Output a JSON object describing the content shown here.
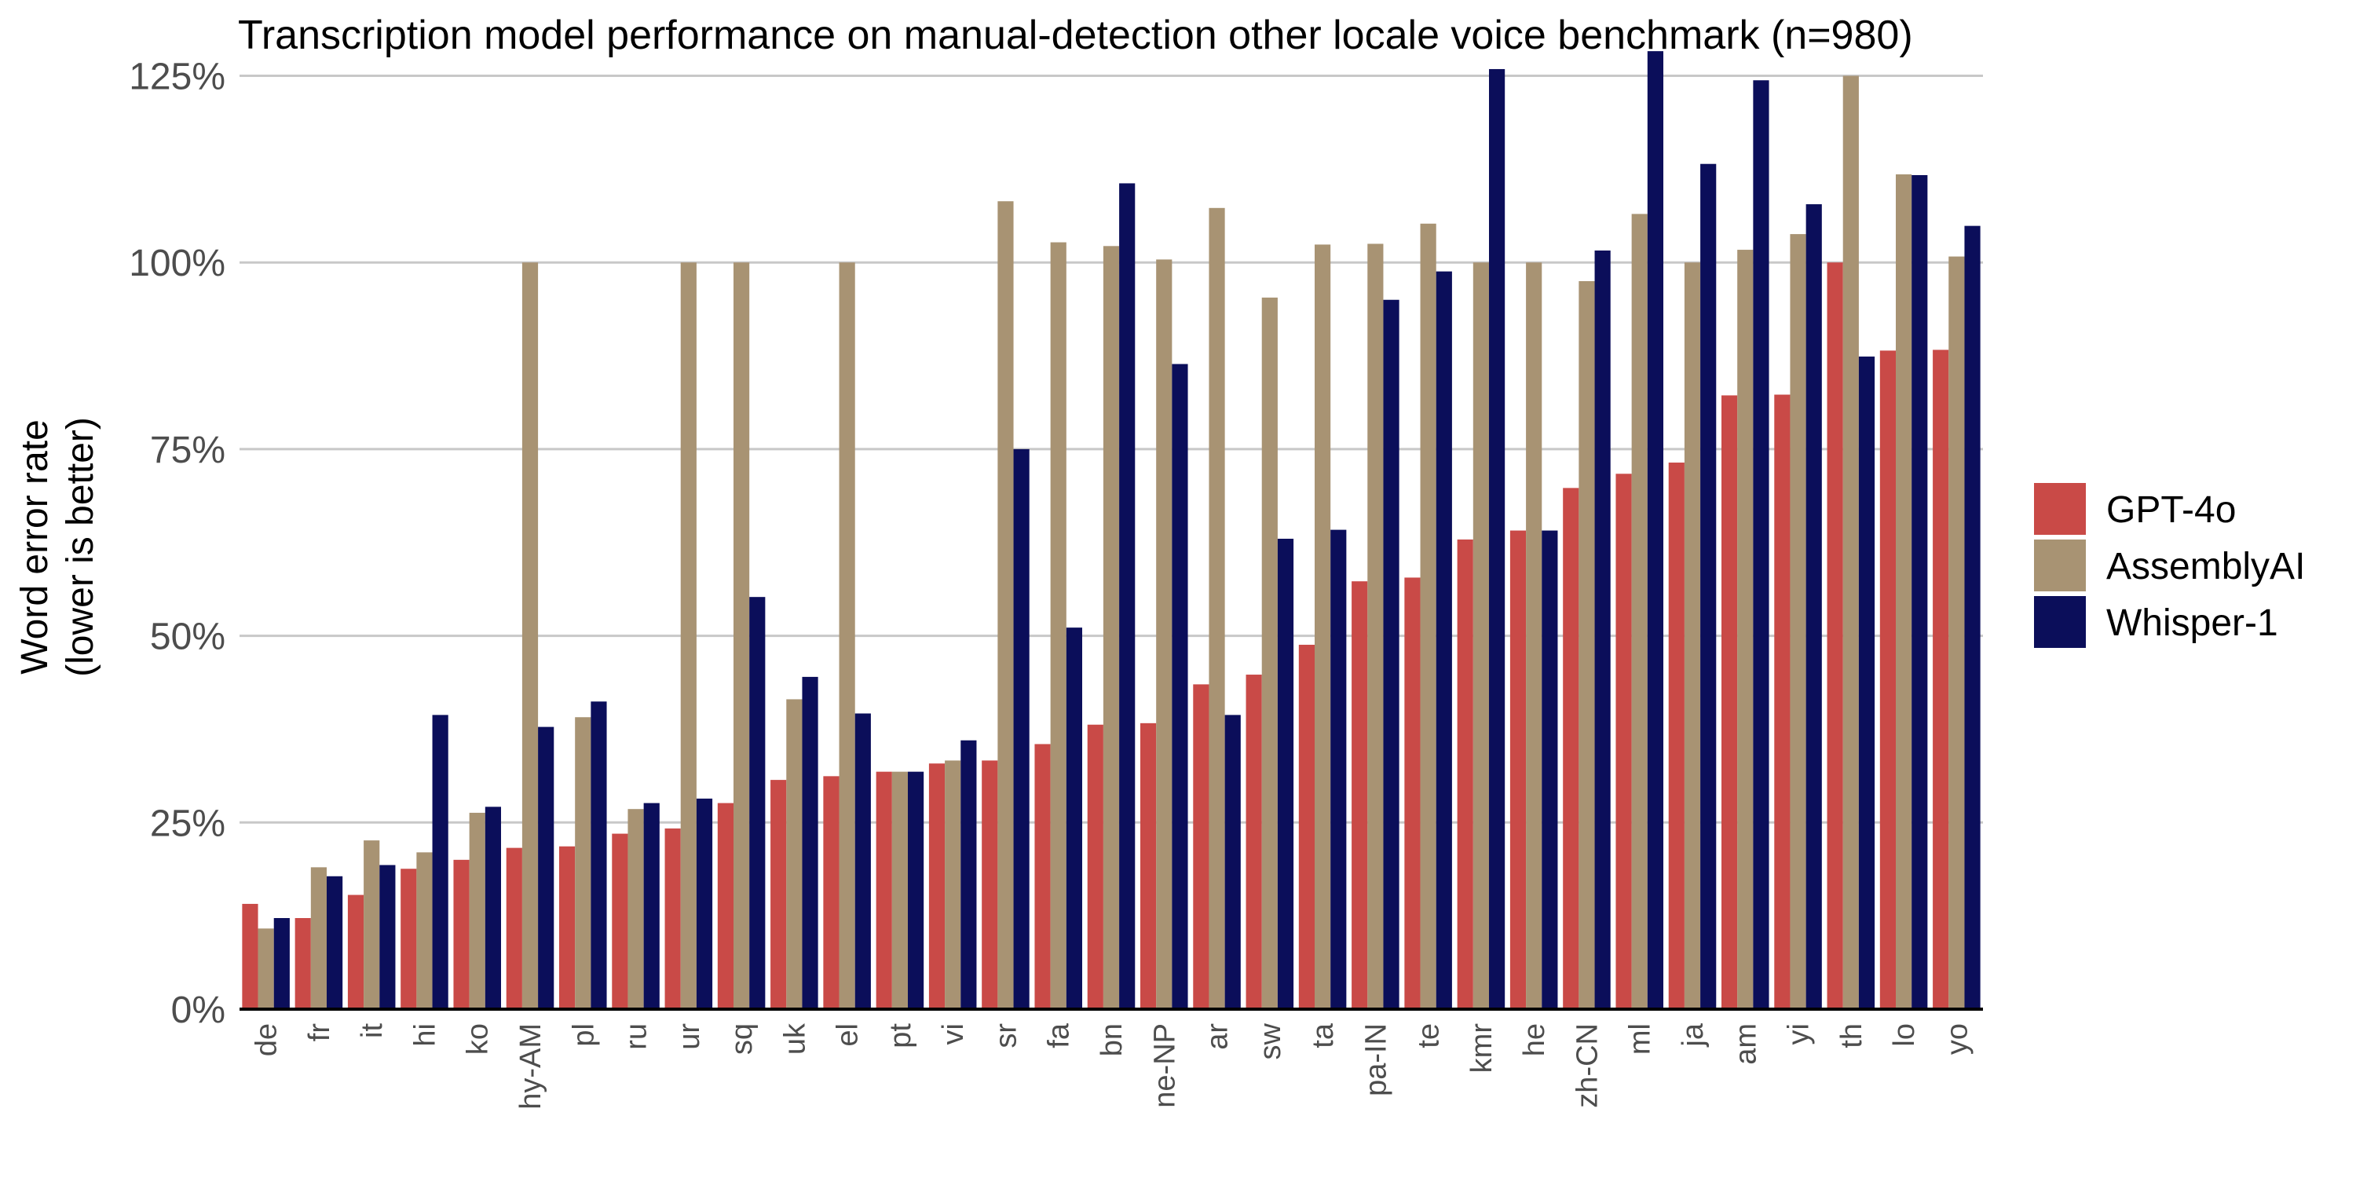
{
  "chart_data": {
    "type": "bar",
    "title": "Transcription model performance on manual-detection other locale voice benchmark (n=980)",
    "ylabel_lines": [
      "Word error rate",
      "(lower is better)"
    ],
    "xlabel": "",
    "ylim": [
      0,
      128
    ],
    "yticks": [
      0,
      25,
      50,
      75,
      100,
      125
    ],
    "ytick_labels": [
      "0%",
      "25%",
      "50%",
      "75%",
      "100%",
      "125%"
    ],
    "grid": true,
    "legend_position": "right",
    "categories": [
      "de",
      "fr",
      "it",
      "hi",
      "ko",
      "hy-AM",
      "pl",
      "ru",
      "ur",
      "sq",
      "uk",
      "el",
      "pt",
      "vi",
      "sr",
      "fa",
      "bn",
      "ne-NP",
      "ar",
      "sw",
      "ta",
      "pa-IN",
      "te",
      "kmr",
      "he",
      "zh-CN",
      "ml",
      "ja",
      "am",
      "yi",
      "th",
      "lo",
      "yo"
    ],
    "series": [
      {
        "name": "GPT-4o",
        "color": "#c94a47",
        "values": [
          14.1,
          12.2,
          15.3,
          18.8,
          20.0,
          21.6,
          21.8,
          23.5,
          24.2,
          27.6,
          30.7,
          31.2,
          31.8,
          32.9,
          33.3,
          35.5,
          38.1,
          38.3,
          43.5,
          44.8,
          48.8,
          57.3,
          57.8,
          62.9,
          64.1,
          69.8,
          71.7,
          73.2,
          82.2,
          82.3,
          100.0,
          88.2,
          88.3
        ]
      },
      {
        "name": "AssemblyAI",
        "color": "#a89373",
        "values": [
          10.8,
          19.0,
          22.6,
          21.0,
          26.3,
          100.0,
          39.1,
          26.8,
          100.0,
          100.0,
          41.5,
          100.0,
          31.8,
          33.3,
          108.2,
          102.7,
          102.2,
          100.4,
          107.3,
          95.3,
          102.4,
          102.5,
          105.2,
          100.0,
          100.0,
          97.5,
          106.5,
          100.0,
          101.7,
          103.8,
          125.0,
          111.8,
          100.8
        ]
      },
      {
        "name": "Whisper-1",
        "color": "#0b0e5a",
        "values": [
          12.2,
          17.8,
          19.3,
          39.4,
          27.1,
          37.8,
          41.2,
          27.6,
          28.2,
          55.2,
          44.5,
          39.6,
          31.8,
          36.0,
          75.0,
          51.1,
          110.6,
          86.4,
          39.4,
          63.0,
          64.2,
          95.0,
          98.8,
          125.9,
          64.1,
          101.6,
          128.3,
          113.2,
          124.4,
          107.8,
          87.4,
          111.7,
          104.9
        ]
      }
    ]
  }
}
